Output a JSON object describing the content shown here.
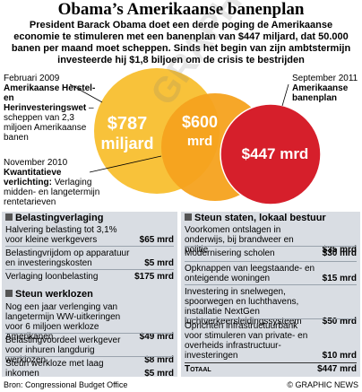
{
  "title": "Obama’s Amerikaanse banenplan",
  "intro": "President Barack Obama doet een derde poging de Amerikaanse economie te stimuleren met een banenplan van $447 miljard, dat 50.000 banen per maand moet scheppen. Sinds het begin van zijn ambtstermijn investeerde hij $1,8 biljoen om de crisis te bestrijden",
  "colors": {
    "orange": "#f6a21e",
    "yellow": "#f8c23a",
    "red": "#d61f2b",
    "panel": "#d9dde3"
  },
  "labels": {
    "feb_date": "Februari 2009",
    "feb_title": "Amerikaanse Herstel- en Herinvesteringswet",
    "feb_text": "– scheppen van 2,3 miljoen Amerikaanse banen",
    "nov_date": "November 2010",
    "nov_title": "Kwantitatieve verlichting:",
    "nov_text": "Verlaging midden- en langetermijn rentetarieven",
    "sep_date": "September 2011",
    "sep_title": "Amerikaanse banenplan"
  },
  "chart_data": {
    "type": "venn",
    "circles": [
      {
        "name": "Amerikaanse Herstel- en Herinvesteringswet",
        "value": 787,
        "label": "$787 miljard",
        "color": "#f8c23a"
      },
      {
        "name": "Kwantitatieve verlichting",
        "value": 600,
        "label": "$600 mrd",
        "color": "#f6a21e"
      },
      {
        "name": "Amerikaanse banenplan",
        "value": 447,
        "label": "$447 mrd",
        "color": "#d61f2b"
      }
    ]
  },
  "watermark": "GRAPHIC NEWS",
  "left": {
    "sec1_title": "Belastingverlaging",
    "sec1": [
      {
        "desc": "Halvering belasting tot 3,1% voor kleine werkgevers",
        "val": "$65 mrd"
      },
      {
        "desc": "Belastingvrijdom op apparatuur en investeringskosten",
        "val": "$5 mrd"
      },
      {
        "desc": "Verlaging loonbelasting",
        "val": "$175 mrd"
      }
    ],
    "sec2_title": "Steun werklozen",
    "sec2": [
      {
        "desc": "Nog een jaar verlenging van langetermijn WW-uitkeringen voor 6 miljoen werkloze Amerikanen",
        "val": "$49 mrd"
      },
      {
        "desc": "Belastingvoordeel werkgever voor inhuren langdurig werklozen",
        "val": "$8 mrd"
      },
      {
        "desc": "Steun werkloze met laag inkomen",
        "val": "$5 mrd"
      }
    ]
  },
  "right": {
    "title": "Steun staten, lokaal bestuur",
    "rows": [
      {
        "desc": "Voorkomen ontslagen in onderwijs, bij brandweer en politie",
        "val": "$35 mrd"
      },
      {
        "desc": "Modernisering scholen",
        "val": "$30 mrd"
      },
      {
        "desc": "Opknappen van leegstaande- en onteigende woningen",
        "val": "$15 mrd"
      },
      {
        "desc": "Investering in snelwegen, spoorwegen en luchthavens, installatie NextGen luchtverkeersleidingssysteem",
        "val": "$50 mrd"
      },
      {
        "desc": "Oprichten infrastructuurbank voor stimuleren van private- en overheids infrastructuur-investeringen",
        "val": "$10 mrd"
      }
    ],
    "total_label": "Totaal",
    "total_val": "$447 mrd"
  },
  "footer": {
    "source": "Bron: Congressional Budget Office",
    "credit": "© GRAPHIC NEWS"
  }
}
